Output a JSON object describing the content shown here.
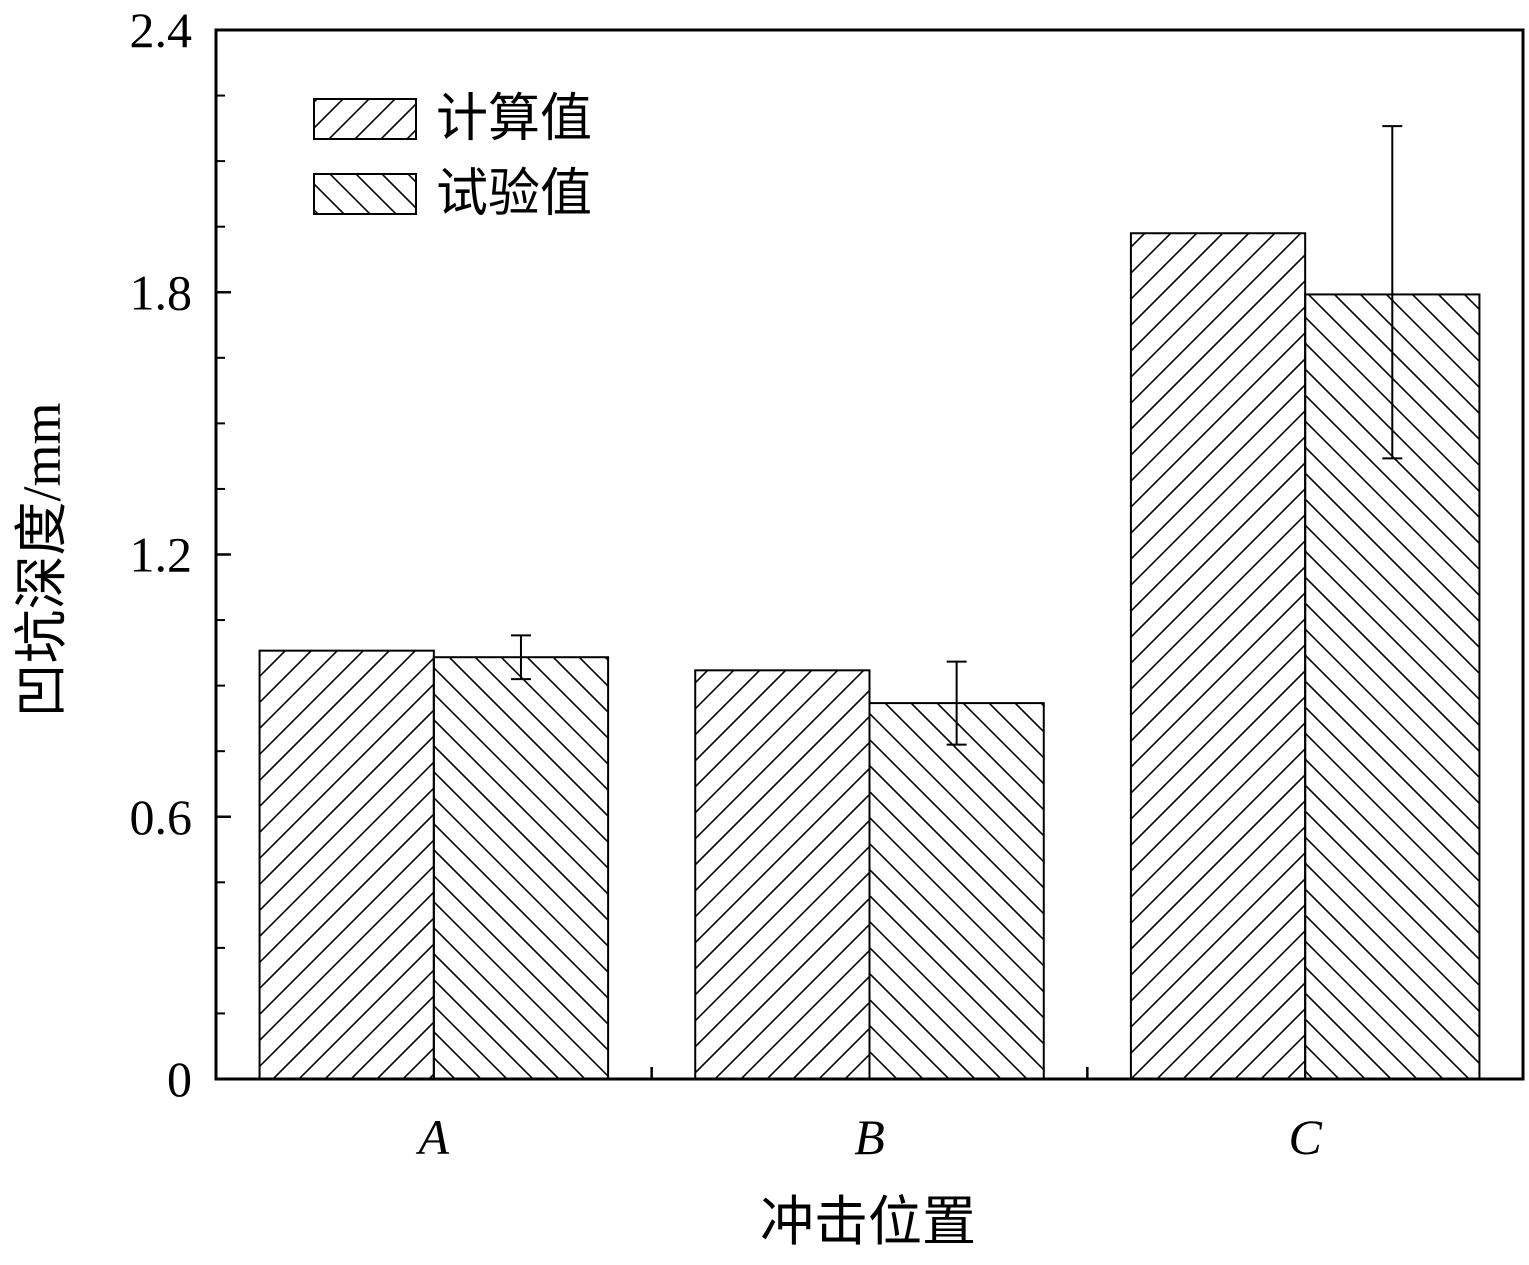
{
  "chart_data": {
    "type": "bar",
    "xlabel": "冲击位置",
    "ylabel": "凹坑深度/mm",
    "categories": [
      "A",
      "B",
      "C"
    ],
    "series": [
      {
        "name": "计算值",
        "values": [
          0.98,
          0.935,
          1.935
        ],
        "hatch": "forward"
      },
      {
        "name": "试验值",
        "values": [
          0.965,
          0.86,
          1.795
        ],
        "hatch": "backward",
        "error": [
          [
            0.915,
            1.015
          ],
          [
            0.765,
            0.955
          ],
          [
            1.42,
            2.18
          ]
        ]
      }
    ],
    "ylim": [
      0,
      2.4
    ],
    "yticks": [
      0,
      0.6,
      1.2,
      1.8,
      2.4
    ],
    "ytick_labels": [
      "0",
      "0.6",
      "1.2",
      "1.8",
      "2.4"
    ],
    "minor_yticks_per_major": 3,
    "grid": false,
    "legend_position": "top-left",
    "colors": {
      "axis": "#000000",
      "bar_fill": "#ffffff",
      "hatch": "#000000"
    }
  }
}
